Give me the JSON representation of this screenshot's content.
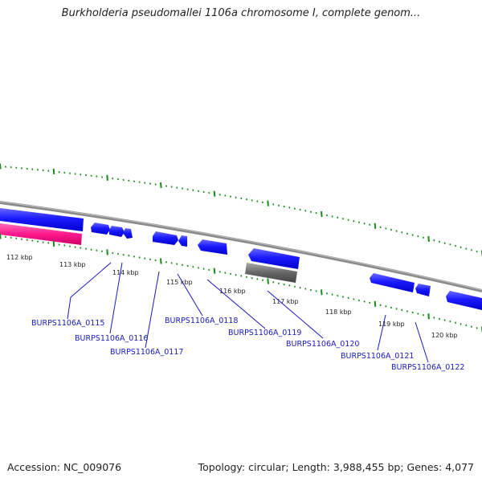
{
  "title": "Burkholderia pseudomallei 1106a chromosome I, complete genom...",
  "footer": {
    "accession": "Accession: NC_009076",
    "summary": "Topology: circular; Length: 3,988,455 bp; Genes: 4,077"
  },
  "tick_labels": [
    "112 kbp",
    "113 kbp",
    "114 kbp",
    "115 kbp",
    "116 kbp",
    "117 kbp",
    "118 kbp",
    "119 kbp",
    "120 kbp"
  ],
  "gene_labels": [
    "BURPS1106A_0115",
    "BURPS1106A_0116",
    "BURPS1106A_0117",
    "BURPS1106A_0118",
    "BURPS1106A_0119",
    "BURPS1106A_0120",
    "BURPS1106A_0121",
    "BURPS1106A_0122"
  ],
  "colors": {
    "backbone": "#8a8a8a",
    "gene_forward": "#1a1aff",
    "rna": "#ff1a8c",
    "pseudogene": "#666666",
    "tick": "#1a8a1a",
    "label": "#1a1ab8"
  }
}
